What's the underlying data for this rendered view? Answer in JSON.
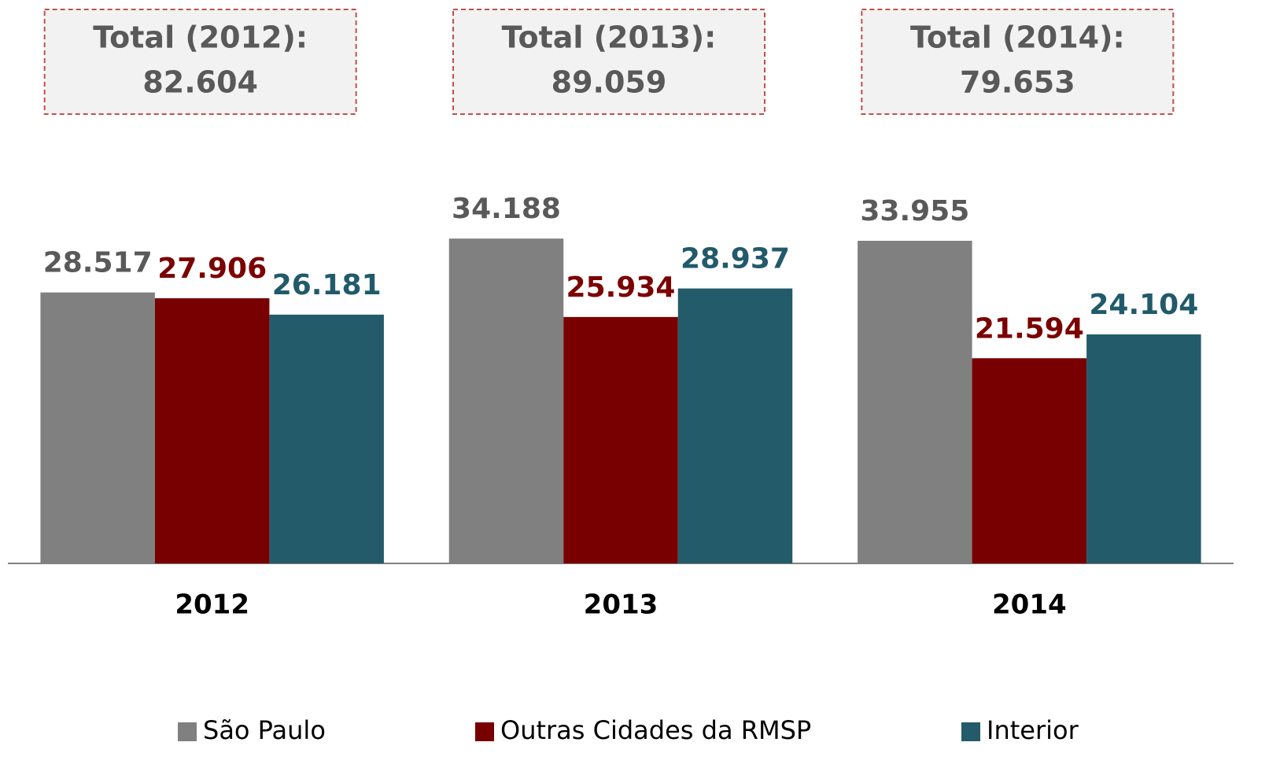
{
  "chart_data": {
    "type": "bar",
    "categories": [
      "2012",
      "2013",
      "2014"
    ],
    "series": [
      {
        "name": "São Paulo",
        "color": "#808080",
        "label_color": "#595959",
        "values": [
          28.517,
          34.188,
          33.955
        ]
      },
      {
        "name": "Outras Cidades da RMSP",
        "color": "#780000",
        "label_color": "#7b0000",
        "values": [
          27.906,
          25.934,
          21.594
        ]
      },
      {
        "name": "Interior",
        "color": "#235b6a",
        "label_color": "#215a6a",
        "values": [
          26.181,
          28.937,
          24.104
        ]
      }
    ],
    "annotations": [
      {
        "text": "Total (2012):",
        "value": 82.604
      },
      {
        "text": "Total (2013):",
        "value": 89.059
      },
      {
        "text": "Total (2014):",
        "value": 79.653
      }
    ],
    "ylim": [
      0,
      40
    ],
    "legend": "bottom"
  }
}
